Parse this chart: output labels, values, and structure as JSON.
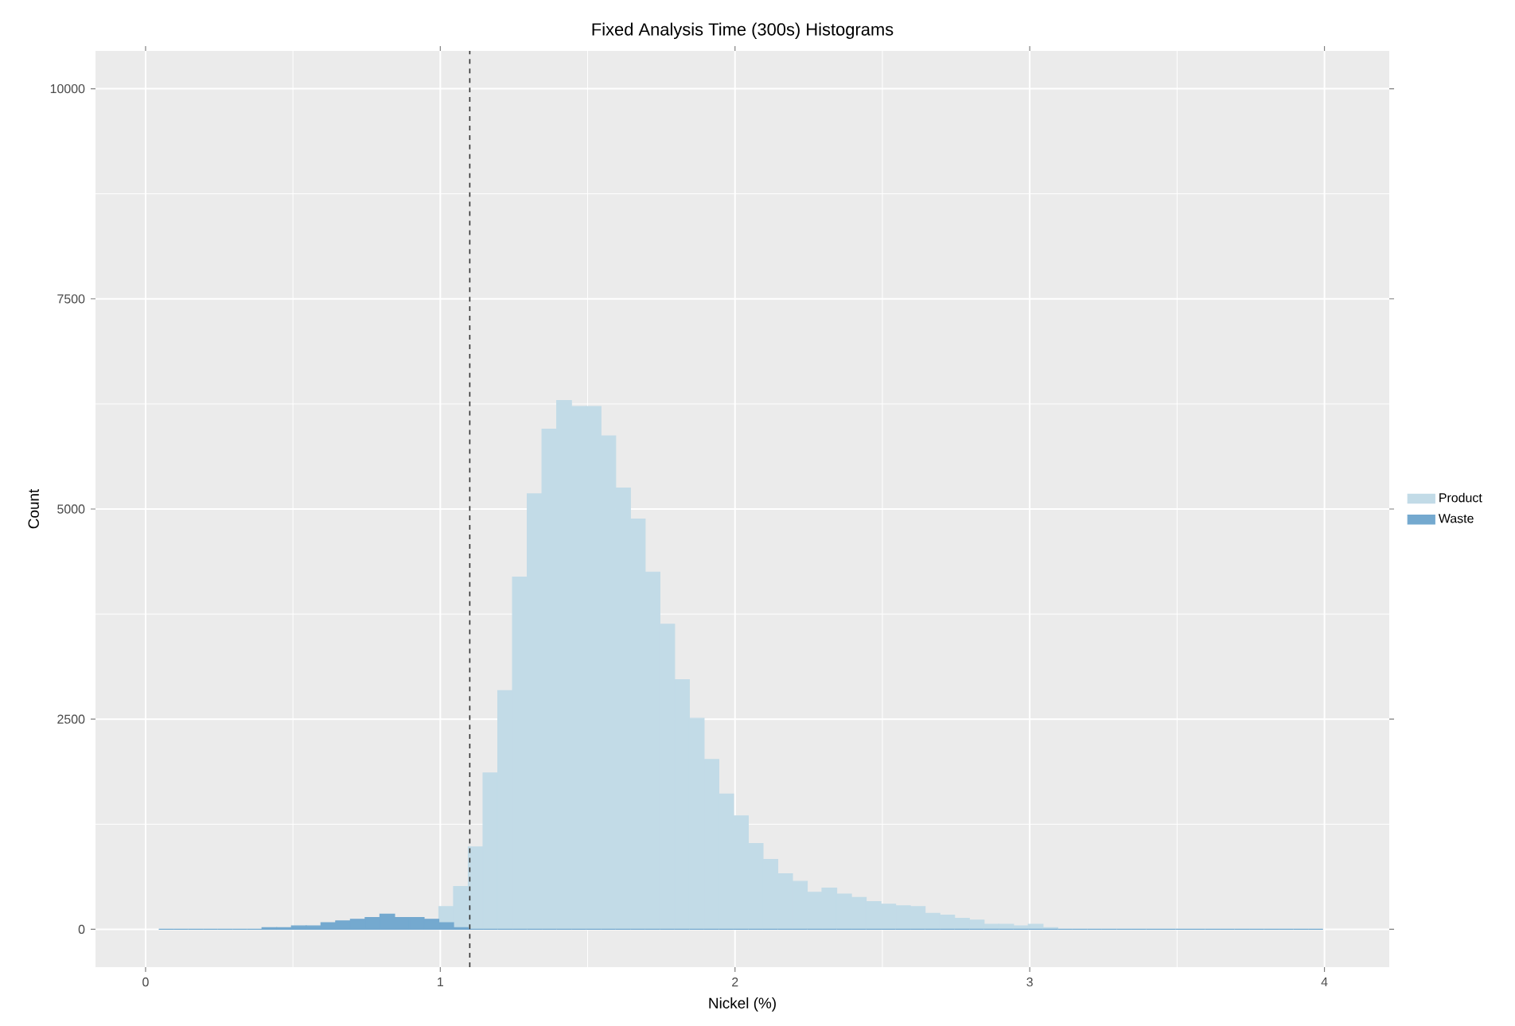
{
  "chart_data": {
    "type": "histogram",
    "title": "Fixed Analysis Time (300s) Histograms",
    "xlabel": "Nickel (%)",
    "ylabel": "Count",
    "bins": [
      0.045,
      0.095,
      0.145,
      0.195,
      0.245,
      0.295,
      0.345,
      0.395,
      0.445,
      0.495,
      0.545,
      0.595,
      0.645,
      0.695,
      0.745,
      0.795,
      0.845,
      0.895,
      0.945,
      0.995,
      1.045,
      1.095,
      1.145,
      1.195,
      1.245,
      1.295,
      1.345,
      1.395,
      1.445,
      1.495,
      1.545,
      1.595,
      1.645,
      1.695,
      1.745,
      1.795,
      1.845,
      1.895,
      1.945,
      1.995,
      2.045,
      2.095,
      2.145,
      2.195,
      2.245,
      2.295,
      2.345,
      2.395,
      2.445,
      2.495,
      2.545,
      2.595,
      2.645,
      2.695,
      2.745,
      2.795,
      2.845,
      2.895,
      2.945,
      2.995,
      3.045,
      3.095,
      3.145,
      3.195,
      3.245,
      3.295,
      3.345,
      3.395,
      3.445,
      3.495,
      3.545,
      3.595,
      3.645,
      3.695,
      3.745,
      3.795,
      3.845,
      3.895,
      3.945,
      3.995
    ],
    "series": [
      {
        "name": "Product",
        "color": "#c2dbe7",
        "values": [
          0,
          0,
          0,
          0,
          0,
          0,
          0,
          0,
          0,
          0,
          0,
          0,
          0,
          0,
          0,
          0,
          0,
          0,
          0,
          270,
          510,
          980,
          1860,
          2840,
          4190,
          5180,
          5950,
          6290,
          6220,
          6220,
          5870,
          5250,
          4880,
          4250,
          3630,
          2970,
          2510,
          2020,
          1610,
          1350,
          1020,
          830,
          660,
          570,
          440,
          490,
          420,
          380,
          330,
          300,
          280,
          270,
          190,
          170,
          130,
          110,
          60,
          60,
          40,
          60,
          20,
          0,
          0,
          0,
          0,
          0,
          0,
          0,
          0,
          0,
          0,
          0,
          0,
          0,
          0,
          0,
          0,
          0,
          0
        ]
      },
      {
        "name": "Waste",
        "color": "#74a9cf",
        "values": [
          0,
          0,
          0,
          0,
          0,
          0,
          0,
          20,
          20,
          40,
          40,
          80,
          100,
          120,
          140,
          180,
          140,
          140,
          120,
          80,
          20,
          0,
          0,
          0,
          0,
          0,
          0,
          0,
          0,
          0,
          0,
          0,
          0,
          0,
          0,
          0,
          0,
          0,
          0,
          0,
          0,
          0,
          0,
          0,
          0,
          0,
          0,
          0,
          0,
          0,
          0,
          0,
          0,
          0,
          0,
          0,
          0,
          0,
          0,
          0,
          0,
          0,
          0,
          0,
          0,
          0,
          0,
          0,
          0,
          0,
          0,
          0,
          0,
          0,
          0,
          0,
          0,
          0,
          0
        ]
      }
    ],
    "xlim": [
      -0.17,
      4.22
    ],
    "ylim": [
      -450,
      10450
    ],
    "xticks": [
      0,
      1,
      2,
      3,
      4
    ],
    "yticks": [
      0,
      2500,
      5000,
      7500,
      10000
    ],
    "ref_lines": [
      {
        "axis": "x",
        "value": 1.1,
        "color": "#333333",
        "line_style": "dashed"
      }
    ],
    "grid": true,
    "legend": "right"
  }
}
